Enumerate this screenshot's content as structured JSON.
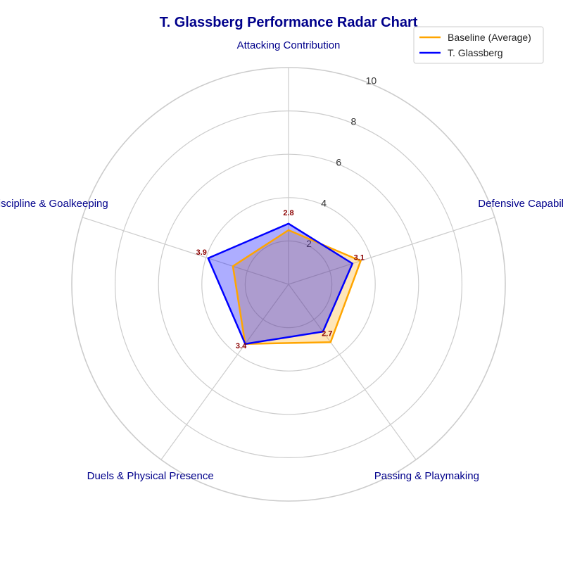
{
  "chart_data": {
    "type": "radar",
    "title": "T. Glassberg Performance Radar Chart",
    "categories": [
      "Attacking Contribution",
      "Defensive Capability",
      "Passing & Playmaking",
      "Duels & Physical Presence",
      "Discipline & Goalkeeping"
    ],
    "rlim": [
      0,
      10
    ],
    "rticks": [
      2,
      4,
      6,
      8,
      10
    ],
    "rtick_labels": [
      "2",
      "4",
      "6",
      "8",
      "10"
    ],
    "series": [
      {
        "name": "Baseline (Average)",
        "values": [
          2.5,
          3.5,
          3.3,
          3.4,
          2.7
        ],
        "color": "#ffa500",
        "fill_color": "#ffa500"
      },
      {
        "name": "T. Glassberg",
        "values": [
          2.8,
          3.1,
          2.7,
          3.4,
          3.9
        ],
        "color": "#0000ff",
        "fill_color": "#0000ff"
      }
    ],
    "data_labels": [
      "2.8",
      "3.1",
      "2.7",
      "3.4",
      "3.9"
    ],
    "legend_position": "top-right",
    "grid": true,
    "colors": {
      "title": "#00008b",
      "axis_label": "#00008b",
      "data_label": "#8b0000",
      "grid": "#cccccc"
    }
  }
}
